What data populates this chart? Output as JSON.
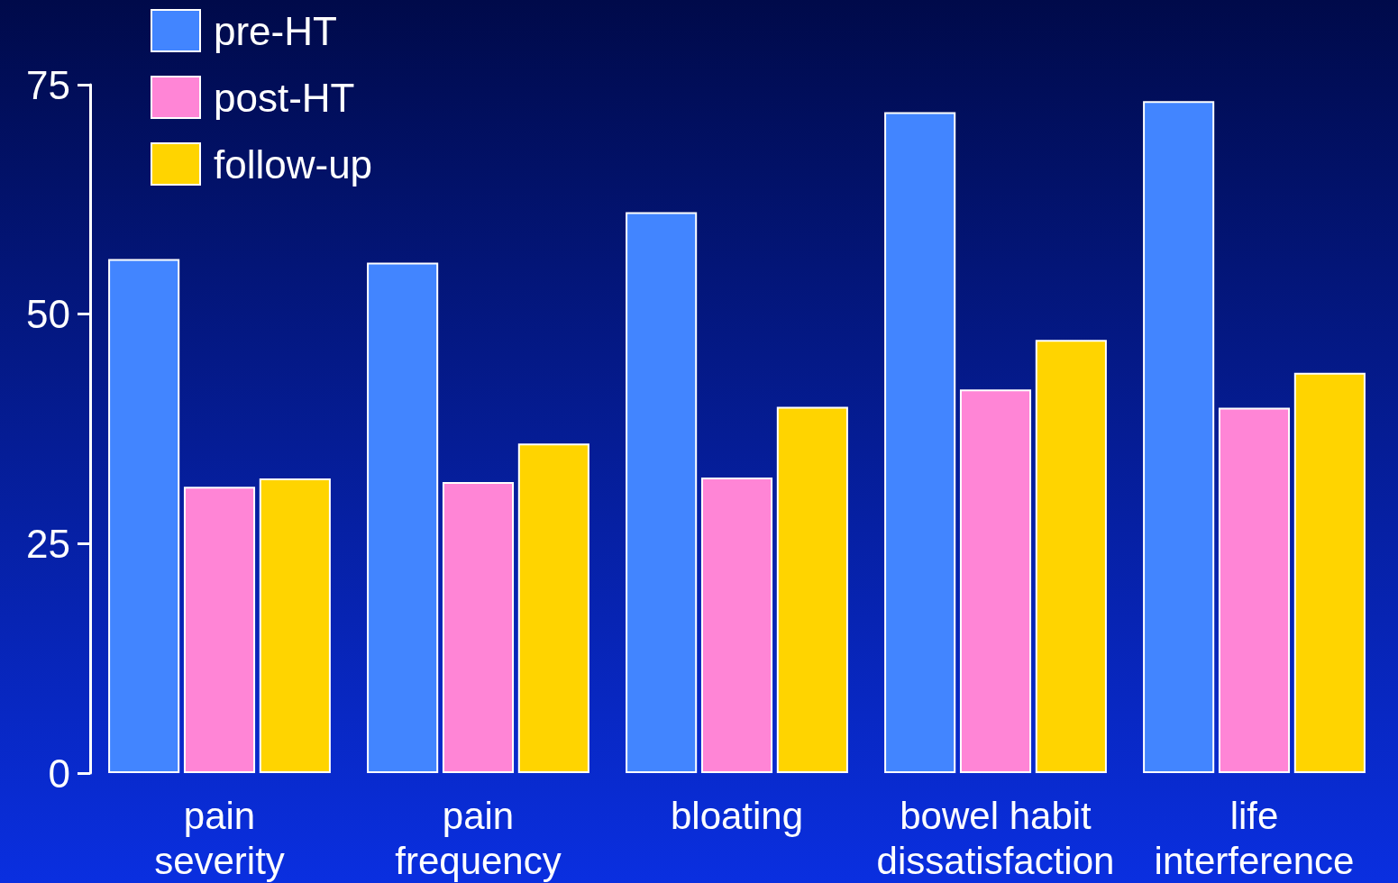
{
  "chart_data": {
    "type": "bar",
    "categories": [
      "pain\nseverity",
      "pain\nfrequency",
      "bloating",
      "bowel habit\ndissatisfaction",
      "life\ninterference"
    ],
    "series": [
      {
        "name": "pre-HT",
        "color": "#4285ff",
        "values": [
          56,
          55.6,
          61.1,
          72,
          73.2
        ]
      },
      {
        "name": "post-HT",
        "color": "#ff85d6",
        "values": [
          31.2,
          31.7,
          32.2,
          41.8,
          39.8
        ]
      },
      {
        "name": "follow-up",
        "color": "#ffd400",
        "values": [
          32.1,
          35.9,
          39.9,
          47.2,
          43.6
        ]
      }
    ],
    "ylim": [
      0,
      75
    ],
    "yticks": [
      0,
      25,
      50,
      75
    ],
    "grid": false,
    "legend": "top left"
  }
}
